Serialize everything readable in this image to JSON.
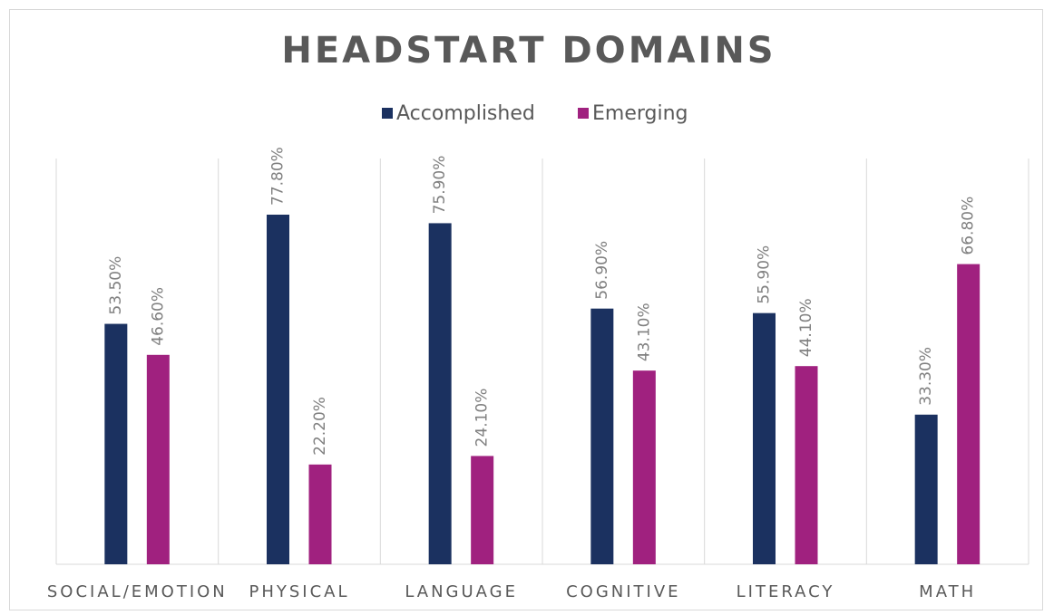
{
  "chart_data": {
    "type": "bar",
    "title": "HEADSTART DOMAINS",
    "categories": [
      "SOCIAL/EMOTION",
      "PHYSICAL",
      "LANGUAGE",
      "COGNITIVE",
      "LITERACY",
      "MATH"
    ],
    "series": [
      {
        "name": "Accomplished",
        "color": "#1b3160",
        "values": [
          53.5,
          77.8,
          75.9,
          56.9,
          55.9,
          33.3
        ],
        "value_labels": [
          "53.50%",
          "77.80%",
          "75.90%",
          "56.90%",
          "55.90%",
          "33.30%"
        ]
      },
      {
        "name": "Emerging",
        "color": "#a0217f",
        "values": [
          46.6,
          22.2,
          24.1,
          43.1,
          44.1,
          66.8
        ],
        "value_labels": [
          "46.60%",
          "22.20%",
          "24.10%",
          "43.10%",
          "44.10%",
          "66.80%"
        ]
      }
    ],
    "legend": "top"
  }
}
